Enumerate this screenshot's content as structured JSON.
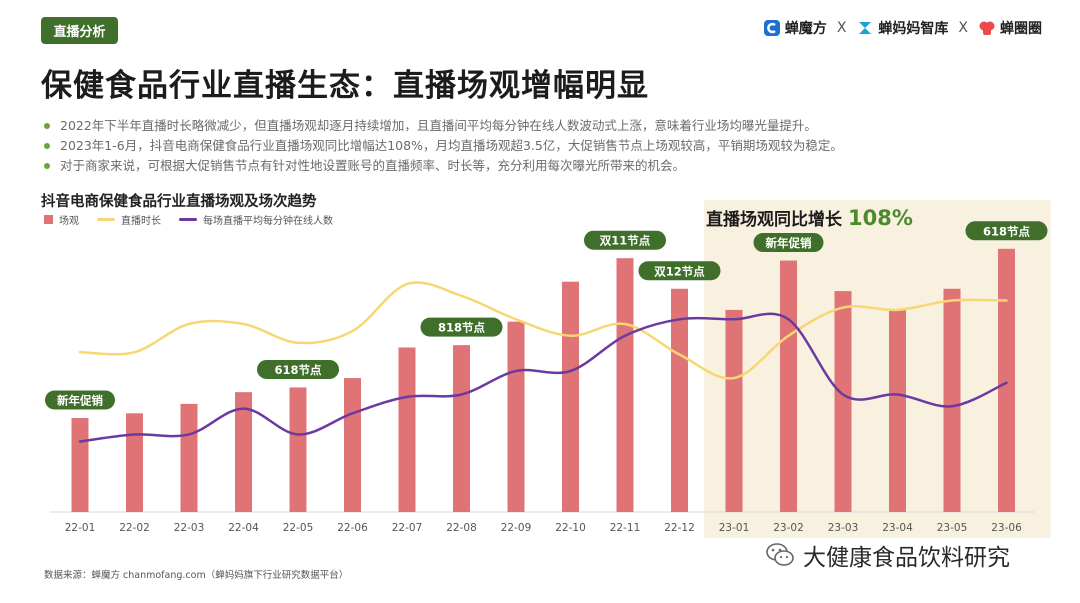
{
  "header": {
    "section_tag": "直播分析",
    "brands": [
      {
        "name": "蝉魔方",
        "icon": "chanmofang-logo-icon"
      },
      {
        "name": "蝉妈妈智库",
        "icon": "chanmama-logo-icon"
      },
      {
        "name": "蝉圈圈",
        "icon": "chanquanquan-logo-icon"
      }
    ],
    "separator": "X"
  },
  "page_title": "保健食品行业直播生态：直播场观增幅明显",
  "bullets": [
    "2022年下半年直播时长略微减少，但直播场观却逐月持续增加，且直播间平均每分钟在线人数波动式上涨，意味着行业场均曝光量提升。",
    "2023年1-6月，抖音电商保健食品行业直播场观同比增幅达108%，月均直播场观超3.5亿，大促销售节点上场观较高，平销期场观较为稳定。",
    "对于商家来说，可根据大促销售节点有针对性地设置账号的直播频率、时长等，充分利用每次曝光所带来的机会。"
  ],
  "highlight": {
    "label": "直播场观同比增长",
    "value": "108%"
  },
  "source": "数据来源：蝉魔方 chanmofang.com（蝉妈妈旗下行业研究数据平台）",
  "watermark": {
    "account": "大健康食品饮料研究",
    "icon": "wechat-icon"
  },
  "colors": {
    "bar": "#e07376",
    "duration_line": "#f7d774",
    "online_line": "#6b3aa0",
    "highlight_bg": "#f8f1df",
    "tag_bg": "#3f6f2a",
    "accent_green": "#4c8a2e",
    "bullet_dot": "#6aa437"
  },
  "chart_data": {
    "type": "bar",
    "title": "抖音电商保健食品行业直播场观及场次趋势",
    "legend": [
      "场观",
      "直播时长",
      "每场直播平均每分钟在线人数"
    ],
    "categories": [
      "22-01",
      "22-02",
      "22-03",
      "22-04",
      "22-05",
      "22-06",
      "22-07",
      "22-08",
      "22-09",
      "22-10",
      "22-11",
      "22-12",
      "23-01",
      "23-02",
      "23-03",
      "23-04",
      "23-05",
      "23-06"
    ],
    "series": [
      {
        "name": "场观",
        "type": "bar",
        "values": [
          40,
          42,
          46,
          51,
          53,
          57,
          70,
          71,
          81,
          98,
          108,
          95,
          86,
          107,
          94,
          86,
          95,
          112
        ]
      },
      {
        "name": "直播时长",
        "type": "line",
        "values": [
          68,
          68,
          80,
          80,
          72,
          77,
          97,
          92,
          82,
          75,
          80,
          67,
          57,
          75,
          87,
          86,
          90,
          90
        ]
      },
      {
        "name": "每场直播平均每分钟在线人数",
        "type": "line",
        "values": [
          30,
          33,
          33,
          44,
          33,
          42,
          49,
          50,
          60,
          60,
          75,
          82,
          82,
          82,
          50,
          50,
          45,
          55
        ]
      }
    ],
    "yrange": [
      0,
      120
    ],
    "annotations": [
      {
        "category": "22-01",
        "label": "新年促销"
      },
      {
        "category": "22-05",
        "label": "618节点"
      },
      {
        "category": "22-08",
        "label": "818节点"
      },
      {
        "category": "22-11",
        "label": "双11节点"
      },
      {
        "category": "22-12",
        "label": "双12节点"
      },
      {
        "category": "23-02",
        "label": "新年促销"
      },
      {
        "category": "23-06",
        "label": "618节点"
      }
    ],
    "highlight_range": [
      "23-01",
      "23-06"
    ]
  }
}
